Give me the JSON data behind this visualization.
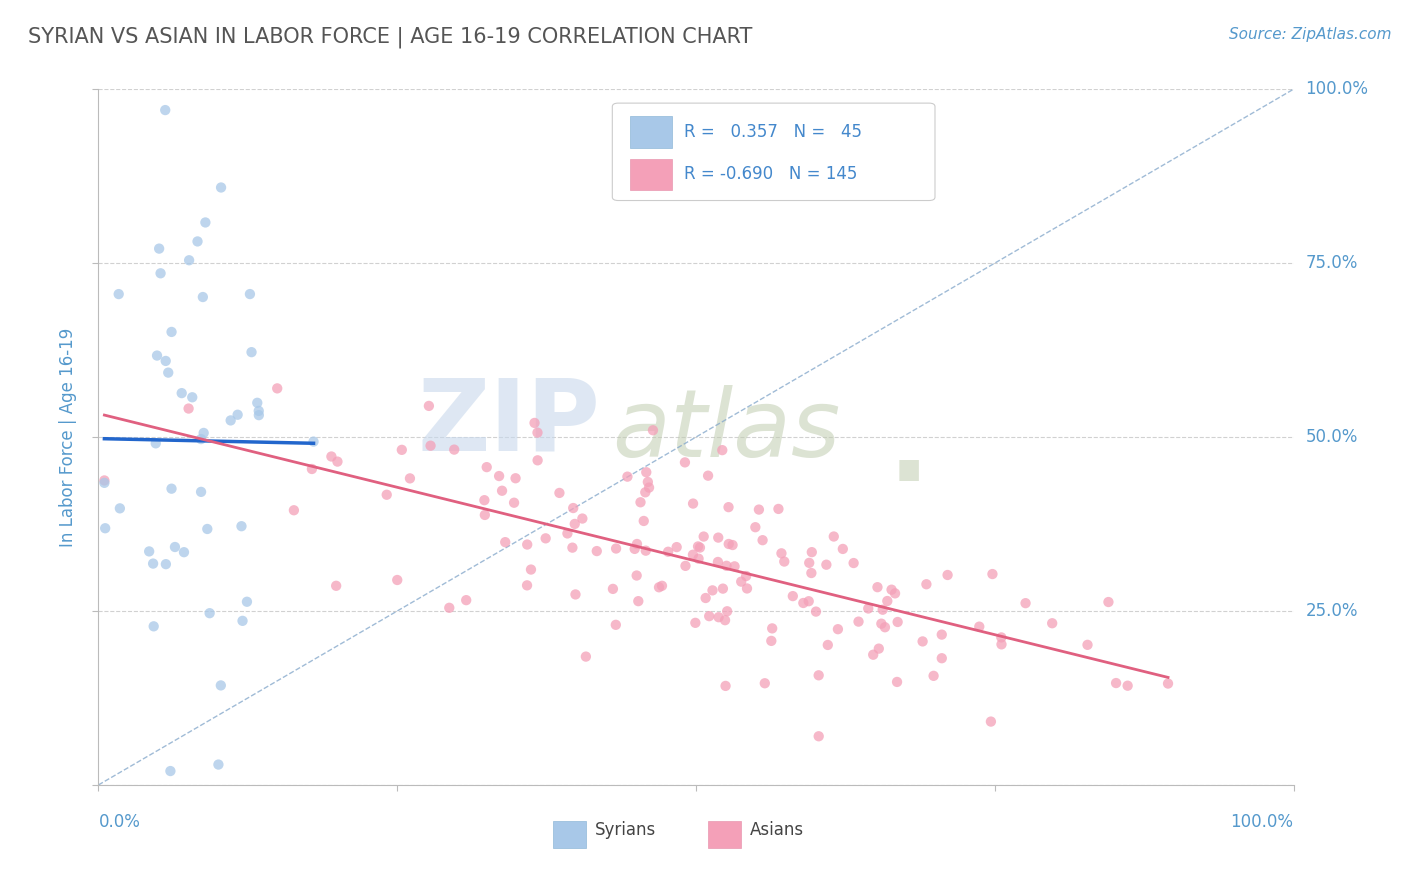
{
  "title": "SYRIAN VS ASIAN IN LABOR FORCE | AGE 16-19 CORRELATION CHART",
  "source_text": "Source: ZipAtlas.com",
  "ylabel": "In Labor Force | Age 16-19",
  "R_syrian": 0.357,
  "N_syrian": 45,
  "R_asian": -0.69,
  "N_asian": 145,
  "syrian_color": "#a8c8e8",
  "asian_color": "#f4a0b8",
  "syrian_line_color": "#2266cc",
  "asian_line_color": "#e06080",
  "diagonal_color": "#88aacc",
  "background_color": "#ffffff",
  "grid_color": "#cccccc",
  "title_color": "#555555",
  "axis_label_color": "#5599cc",
  "watermark_zip_color": "#ccd8e8",
  "watermark_atlas_color": "#c8d4b0",
  "legend_label_color": "#4488cc",
  "right_tick_color": "#5599cc"
}
